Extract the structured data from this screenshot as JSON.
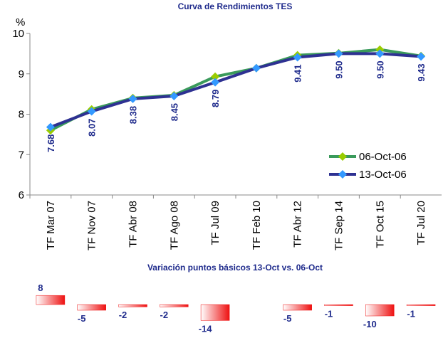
{
  "chart_data": [
    {
      "type": "line",
      "title": "Curva de Rendimientos TES",
      "y_label": "%",
      "categories": [
        "TF Mar 07",
        "TF Nov 07",
        "TF Abr 08",
        "TF Ago 08",
        "TF Jul 09",
        "TF Feb 10",
        "TF Abr 12",
        "TF Sep 14",
        "TF Oct 15",
        "TF Jul 20"
      ],
      "ylim": [
        6,
        10
      ],
      "yticks": [
        6,
        7,
        8,
        9,
        10
      ],
      "legend": "right",
      "series": [
        {
          "name": "06-Oct-06",
          "color": "#3a9a5b",
          "marker_color": "#99cc00",
          "values": [
            7.6,
            8.12,
            8.4,
            8.47,
            8.93,
            9.14,
            9.46,
            9.51,
            9.6,
            9.44
          ]
        },
        {
          "name": "13-Oct-06",
          "color": "#2e3192",
          "marker_color": "#3399ff",
          "values": [
            7.68,
            8.07,
            8.38,
            8.45,
            8.79,
            9.14,
            9.41,
            9.5,
            9.5,
            9.43
          ],
          "value_labels": [
            "7.68",
            "8.07",
            "8.38",
            "8.45",
            "8.79",
            null,
            "9.41",
            "9.50",
            "9.50",
            "9.43"
          ]
        }
      ]
    },
    {
      "type": "bar",
      "title": "Variación puntos básicos 13-Oct vs. 06-Oct",
      "color": "#ee1111",
      "values": [
        8,
        -5,
        -2,
        -2,
        -14,
        null,
        -5,
        -1,
        -10,
        -1
      ]
    }
  ]
}
